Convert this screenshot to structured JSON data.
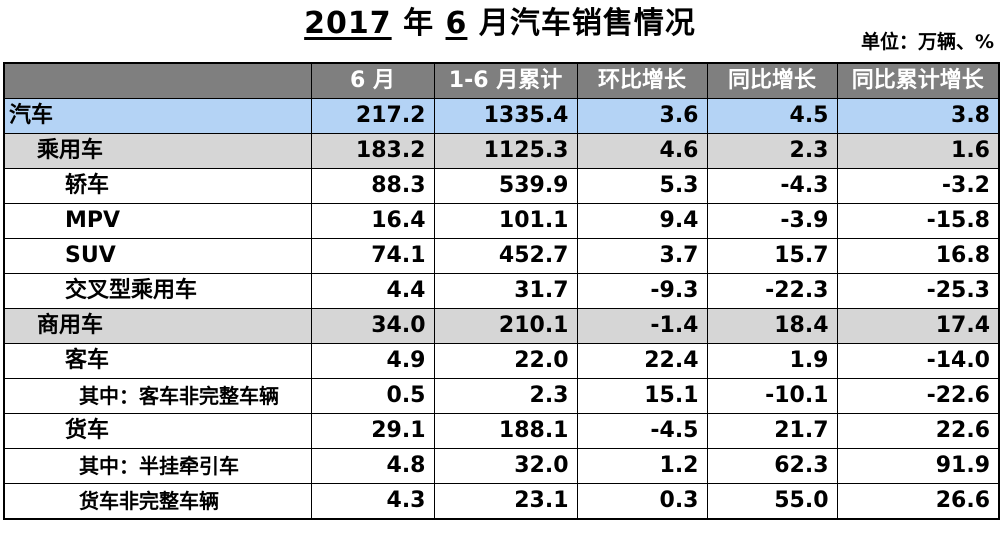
{
  "title": {
    "year": "2017",
    "year_suffix": " 年 ",
    "month": "6",
    "rest": " 月汽车销售情况"
  },
  "unit_label": "单位：万辆、%",
  "columns": [
    "",
    "6 月",
    "1-6 月累计",
    "环比增长",
    "同比增长",
    "同比累计增长"
  ],
  "rows": [
    {
      "name": "汽车",
      "level": 0,
      "style": "total",
      "jun": "217.2",
      "ytd": "1335.4",
      "mom": "3.6",
      "yoy": "4.5",
      "yoy_cum": "3.8"
    },
    {
      "name": "乘用车",
      "level": 1,
      "style": "group",
      "jun": "183.2",
      "ytd": "1125.3",
      "mom": "4.6",
      "yoy": "2.3",
      "yoy_cum": "1.6"
    },
    {
      "name": "轿车",
      "level": 2,
      "style": "plain",
      "jun": "88.3",
      "ytd": "539.9",
      "mom": "5.3",
      "yoy": "-4.3",
      "yoy_cum": "-3.2"
    },
    {
      "name": "MPV",
      "level": 2,
      "style": "plain",
      "jun": "16.4",
      "ytd": "101.1",
      "mom": "9.4",
      "yoy": "-3.9",
      "yoy_cum": "-15.8"
    },
    {
      "name": "SUV",
      "level": 2,
      "style": "plain",
      "jun": "74.1",
      "ytd": "452.7",
      "mom": "3.7",
      "yoy": "15.7",
      "yoy_cum": "16.8"
    },
    {
      "name": "交叉型乘用车",
      "level": 2,
      "style": "plain",
      "jun": "4.4",
      "ytd": "31.7",
      "mom": "-9.3",
      "yoy": "-22.3",
      "yoy_cum": "-25.3"
    },
    {
      "name": "商用车",
      "level": 1,
      "style": "group",
      "jun": "34.0",
      "ytd": "210.1",
      "mom": "-1.4",
      "yoy": "18.4",
      "yoy_cum": "17.4"
    },
    {
      "name": "客车",
      "level": 2,
      "style": "plain",
      "jun": "4.9",
      "ytd": "22.0",
      "mom": "22.4",
      "yoy": "1.9",
      "yoy_cum": "-14.0"
    },
    {
      "name": "其中：客车非完整车辆",
      "level": 3,
      "style": "plain",
      "jun": "0.5",
      "ytd": "2.3",
      "mom": "15.1",
      "yoy": "-10.1",
      "yoy_cum": "-22.6"
    },
    {
      "name": "货车",
      "level": 2,
      "style": "plain",
      "jun": "29.1",
      "ytd": "188.1",
      "mom": "-4.5",
      "yoy": "21.7",
      "yoy_cum": "22.6"
    },
    {
      "name": "其中：半挂牵引车",
      "level": 3,
      "style": "plain",
      "jun": "4.8",
      "ytd": "32.0",
      "mom": "1.2",
      "yoy": "62.3",
      "yoy_cum": "91.9"
    },
    {
      "name": "货车非完整车辆",
      "level": 3,
      "style": "plain",
      "jun": "4.3",
      "ytd": "23.1",
      "mom": "0.3",
      "yoy": "55.0",
      "yoy_cum": "26.6"
    }
  ],
  "colors": {
    "header_bg": "#7f7f7f",
    "total_row_bg": "#b4d3f5",
    "group_row_bg": "#d6d6d6"
  }
}
